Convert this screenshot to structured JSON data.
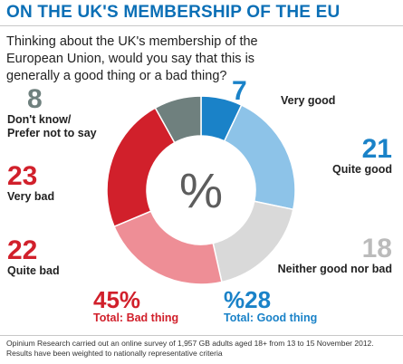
{
  "header": {
    "title": "ON THE UK'S MEMBERSHIP OF THE EU",
    "question": "Thinking about the UK's membership of the European Union, would you say that this is generally a good thing or a bad thing?"
  },
  "chart_data": {
    "type": "pie",
    "center_symbol": "%",
    "slices": [
      {
        "label": "Very good",
        "value": 7,
        "color": "#1a82c8"
      },
      {
        "label": "Quite good",
        "value": 21,
        "color": "#8dc3e8"
      },
      {
        "label": "Neither good nor bad",
        "value": 18,
        "color": "#d9d9d9"
      },
      {
        "label": "Quite bad",
        "value": 22,
        "color": "#ee8e96"
      },
      {
        "label": "Very bad",
        "value": 23,
        "color": "#d1202b"
      },
      {
        "label": "Don't know/ Prefer not to say",
        "label_line1": "Don't know/",
        "label_line2": "Prefer not to say",
        "value": 8,
        "color": "#6f807e"
      }
    ],
    "totals": {
      "bad": {
        "value": "45%",
        "label": "Total: Bad thing",
        "color": "#d1202b"
      },
      "good": {
        "value": "%28",
        "label": "Total: Good thing",
        "color": "#1a82c8"
      }
    }
  },
  "label_colors": {
    "very_good": "#1a82c8",
    "quite_good": "#1a82c8",
    "neither": "#bbbbbb",
    "quite_bad": "#d1202b",
    "very_bad": "#d1202b",
    "dont_know": "#6f807e"
  },
  "footer": {
    "line1": "Opinium Research carried out an online survey of 1,957 GB adults aged 18+ from 13 to 15 November 2012.",
    "line2": "Results have been weighted to nationally representative criteria"
  }
}
